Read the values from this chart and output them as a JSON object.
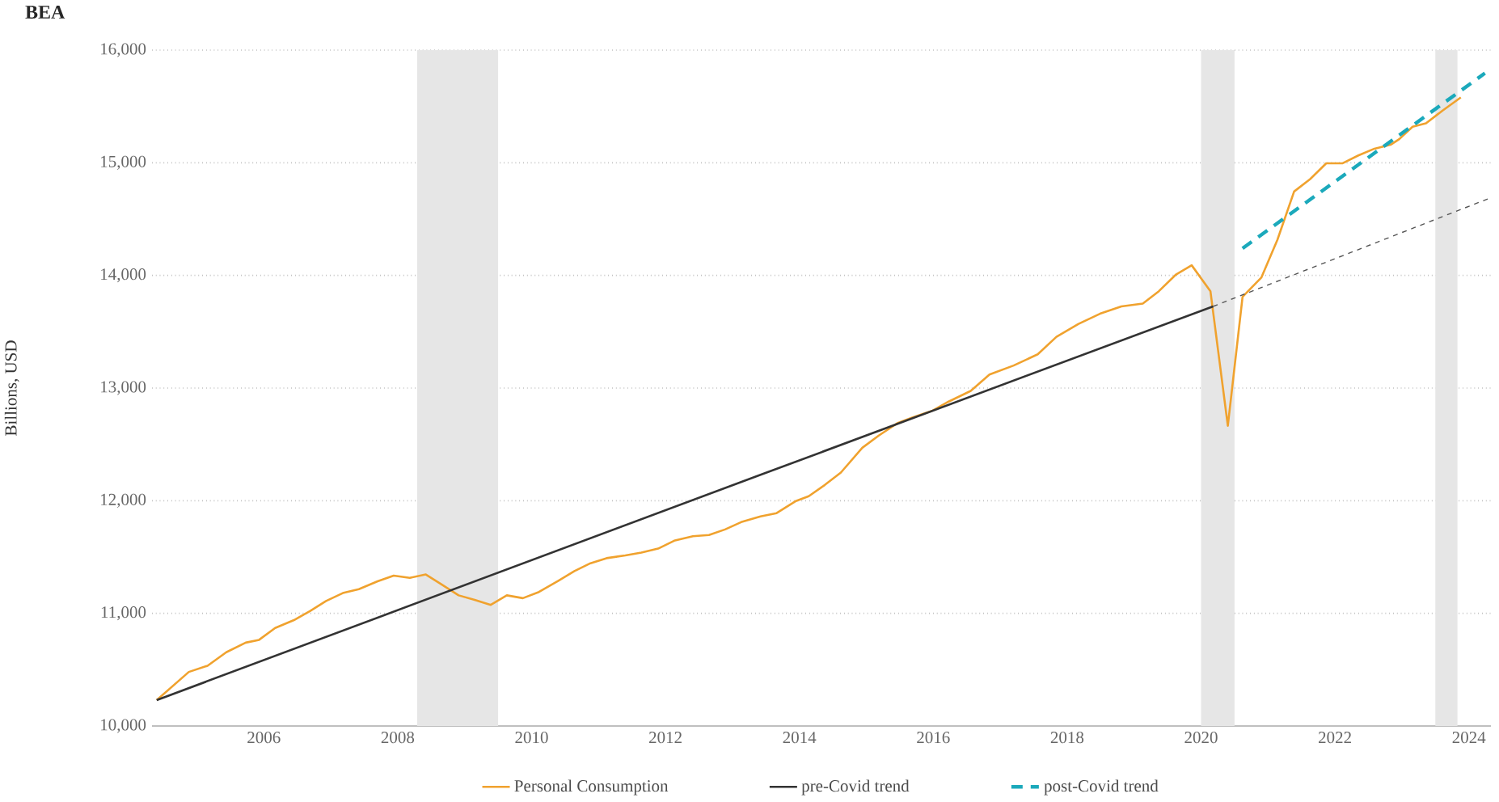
{
  "chart_data": {
    "type": "line",
    "ylabel": "Billions, USD",
    "annotations": [
      "BEA"
    ],
    "xlim": [
      2004.33,
      2024.33
    ],
    "xticks": [
      2006,
      2008,
      2010,
      2012,
      2014,
      2016,
      2018,
      2020,
      2022,
      2024
    ],
    "ylim": [
      10000,
      16000
    ],
    "yticks": [
      {
        "value": 10000,
        "label": "10,000"
      },
      {
        "value": 11000,
        "label": "11,000"
      },
      {
        "value": 12000,
        "label": "12,000"
      },
      {
        "value": 13000,
        "label": "13,000"
      },
      {
        "value": 14000,
        "label": "14,000"
      },
      {
        "value": 15000,
        "label": "15,000"
      },
      {
        "value": 16000,
        "label": "16,000"
      }
    ],
    "grid": "y",
    "legend": "bottom",
    "marker": "none",
    "line_style": "solid",
    "bands": [
      {
        "axis": "x",
        "from": 2008.29,
        "to": 2009.5,
        "color": "#e6e6e6"
      },
      {
        "axis": "x",
        "from": 2020.0,
        "to": 2020.5,
        "color": "#e6e6e6"
      },
      {
        "axis": "x",
        "from": 2023.5,
        "to": 2023.83,
        "color": "#e6e6e6"
      }
    ],
    "series": [
      {
        "name": "Personal Consumption",
        "color": "#f0a22e",
        "x": [
          2004.4,
          2004.88,
          2005.16,
          2005.44,
          2005.73,
          2005.93,
          2006.17,
          2006.45,
          2006.69,
          2006.93,
          2007.18,
          2007.42,
          2007.7,
          2007.94,
          2008.18,
          2008.42,
          2008.66,
          2008.91,
          2009.15,
          2009.39,
          2009.63,
          2009.87,
          2010.11,
          2010.4,
          2010.64,
          2010.88,
          2011.12,
          2011.4,
          2011.64,
          2011.89,
          2012.13,
          2012.41,
          2012.65,
          2012.89,
          2013.13,
          2013.42,
          2013.66,
          2013.94,
          2014.14,
          2014.38,
          2014.62,
          2014.94,
          2015.19,
          2015.47,
          2015.67,
          2015.99,
          2016.23,
          2016.56,
          2016.84,
          2017.2,
          2017.56,
          2017.84,
          2018.17,
          2018.49,
          2018.81,
          2019.13,
          2019.37,
          2019.62,
          2019.86,
          2020.14,
          2020.4,
          2020.62,
          2020.9,
          2021.14,
          2021.39,
          2021.63,
          2021.87,
          2022.11,
          2022.35,
          2022.59,
          2022.83,
          2022.96,
          2023.16,
          2023.36,
          2023.6,
          2023.88
        ],
        "values": [
          10230,
          10480,
          10535,
          10655,
          10740,
          10765,
          10870,
          10940,
          11020,
          11110,
          11180,
          11215,
          11285,
          11335,
          11315,
          11345,
          11255,
          11160,
          11120,
          11075,
          11160,
          11135,
          11190,
          11290,
          11375,
          11445,
          11490,
          11515,
          11540,
          11575,
          11645,
          11685,
          11695,
          11745,
          11810,
          11860,
          11890,
          11995,
          12040,
          12140,
          12250,
          12470,
          12580,
          12690,
          12735,
          12800,
          12880,
          12975,
          13120,
          13200,
          13300,
          13455,
          13570,
          13660,
          13725,
          13750,
          13860,
          14005,
          14090,
          13860,
          12665,
          13810,
          13980,
          14315,
          14745,
          14855,
          14995,
          14995,
          15065,
          15125,
          15160,
          15210,
          15320,
          15350,
          15460,
          15580
        ]
      },
      {
        "name": "pre-Covid trend",
        "color": "#333333",
        "x": [
          2004.4,
          2013.42,
          2020.18
        ],
        "values": [
          10230,
          12230,
          13725
        ]
      },
      {
        "color": "#555555",
        "line_style": "dashed",
        "x": [
          2020.18,
          2024.33
        ],
        "values": [
          13725,
          14690
        ]
      },
      {
        "name": "post-Covid trend",
        "color": "#1ba9bb",
        "line_style": "dashed",
        "x": [
          2020.62,
          2024.24
        ],
        "values": [
          14240,
          15795
        ]
      }
    ]
  }
}
